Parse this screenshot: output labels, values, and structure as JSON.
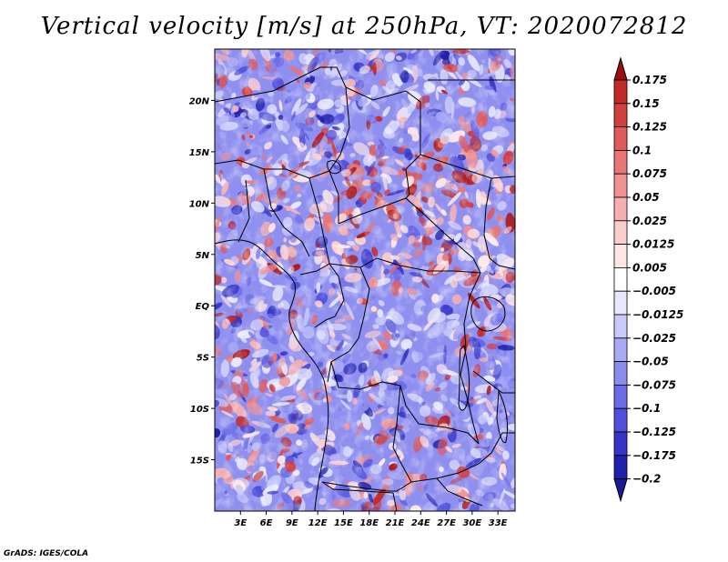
{
  "title": "Vertical velocity [m/s] at 250hPa, VT: 2020072812",
  "credit": "GrADS: IGES/COLA",
  "map": {
    "lon_range": [
      0,
      35
    ],
    "lat_range": [
      -20,
      25
    ],
    "lat_ticks": [
      {
        "value": 20,
        "label": "20N"
      },
      {
        "value": 15,
        "label": "15N"
      },
      {
        "value": 10,
        "label": "10N"
      },
      {
        "value": 5,
        "label": "5N"
      },
      {
        "value": 0,
        "label": "EQ"
      },
      {
        "value": -5,
        "label": "5S"
      },
      {
        "value": -10,
        "label": "10S"
      },
      {
        "value": -15,
        "label": "15S"
      }
    ],
    "lon_ticks": [
      {
        "value": 3,
        "label": "3E"
      },
      {
        "value": 6,
        "label": "6E"
      },
      {
        "value": 9,
        "label": "9E"
      },
      {
        "value": 12,
        "label": "12E"
      },
      {
        "value": 15,
        "label": "15E"
      },
      {
        "value": 18,
        "label": "18E"
      },
      {
        "value": 21,
        "label": "21E"
      },
      {
        "value": 24,
        "label": "24E"
      },
      {
        "value": 27,
        "label": "27E"
      },
      {
        "value": 30,
        "label": "30E"
      },
      {
        "value": 33,
        "label": "33E"
      }
    ]
  },
  "colorbar": {
    "levels": [
      {
        "label": "0.175",
        "color": "#ad1818"
      },
      {
        "label": "0.15",
        "color": "#c22a2a"
      },
      {
        "label": "0.125",
        "color": "#d23f3f"
      },
      {
        "label": "0.1",
        "color": "#df5a5a"
      },
      {
        "label": "0.075",
        "color": "#e87676"
      },
      {
        "label": "0.05",
        "color": "#f09292"
      },
      {
        "label": "0.025",
        "color": "#f6b0b0"
      },
      {
        "label": "0.0125",
        "color": "#fbcece"
      },
      {
        "label": "0.005",
        "color": "#fde6e6"
      },
      {
        "label": "−0.005",
        "color": "#ffffff"
      },
      {
        "label": "−0.0125",
        "color": "#e6e6fd"
      },
      {
        "label": "−0.025",
        "color": "#cacafa"
      },
      {
        "label": "−0.05",
        "color": "#a9a9f4"
      },
      {
        "label": "−0.075",
        "color": "#8b8bee"
      },
      {
        "label": "−0.1",
        "color": "#6c6ce6"
      },
      {
        "label": "−0.125",
        "color": "#4f4fdb"
      },
      {
        "label": "−0.175",
        "color": "#3535c8"
      },
      {
        "label": "−0.2",
        "color": "#2020ad"
      }
    ],
    "top_arrow_color": "#9a1010",
    "bottom_arrow_color": "#1a1a9a"
  }
}
